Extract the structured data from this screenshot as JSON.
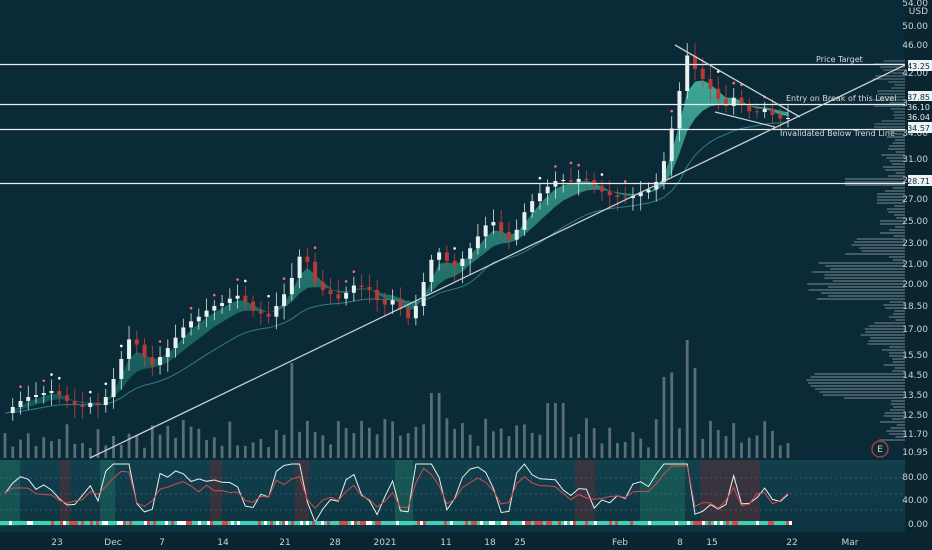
{
  "chart_data": {
    "type": "candlestick",
    "currency_label": "USD",
    "top_price_label": "54.00",
    "y_ticks": [
      "50.00",
      "46.00",
      "42.00",
      "38.00",
      "34.00",
      "31.00",
      "29.00",
      "27.00",
      "25.00",
      "23.00",
      "21.00",
      "20.00",
      "18.50",
      "17.00",
      "15.50",
      "14.50",
      "13.50",
      "12.50",
      "11.70",
      "10.95"
    ],
    "x_ticks": [
      "23",
      "Dec",
      "7",
      "14",
      "21",
      "28",
      "2021",
      "11",
      "18",
      "25",
      "Feb",
      "8",
      "15",
      "22",
      "Mar"
    ],
    "price_tags": [
      {
        "label": "43.25",
        "style": "white"
      },
      {
        "label": "37.85",
        "style": "white"
      },
      {
        "label": "36.10",
        "style": "plain"
      },
      {
        "label": "36.04",
        "style": "plain"
      },
      {
        "label": "34.57",
        "style": "white"
      },
      {
        "label": "28.71",
        "style": "white"
      }
    ],
    "annotations": [
      "Price Target",
      "Entry on Break of this Level",
      "Invalidated Below Trend Line"
    ],
    "horizontal_levels": [
      43.25,
      37.85,
      34.57,
      28.71
    ],
    "price_series": [
      12.6,
      12.9,
      13.2,
      13.4,
      13.5,
      13.6,
      13.7,
      13.5,
      13.2,
      13.0,
      12.9,
      13.1,
      13.0,
      13.4,
      14.3,
      15.3,
      16.4,
      16.1,
      15.4,
      15.0,
      15.4,
      15.9,
      16.5,
      17.1,
      17.5,
      17.8,
      18.2,
      18.5,
      18.7,
      19.0,
      19.2,
      18.8,
      18.2,
      18.0,
      17.8,
      18.5,
      19.3,
      20.3,
      21.7,
      21.2,
      20.1,
      19.6,
      19.3,
      19.0,
      19.4,
      19.9,
      19.8,
      19.6,
      18.9,
      18.6,
      18.9,
      18.3,
      17.7,
      18.5,
      20.1,
      21.4,
      22.1,
      21.3,
      20.9,
      21.5,
      22.5,
      23.6,
      24.6,
      24.9,
      24.0,
      23.3,
      24.2,
      25.8,
      26.8,
      27.6,
      28.3,
      28.9,
      29.0,
      28.8,
      29.1,
      29.0,
      28.4,
      27.8,
      27.4,
      27.2,
      27.1,
      27.3,
      27.7,
      28.0,
      28.8,
      30.8,
      34.6,
      39.6,
      44.5,
      42.6,
      41.2,
      39.9,
      38.5,
      37.6,
      38.7,
      37.7,
      36.9,
      36.8,
      37.2,
      36.4,
      35.9,
      36.0
    ],
    "rsi_ticks": [
      "80.00",
      "40.00",
      "0.00"
    ]
  }
}
